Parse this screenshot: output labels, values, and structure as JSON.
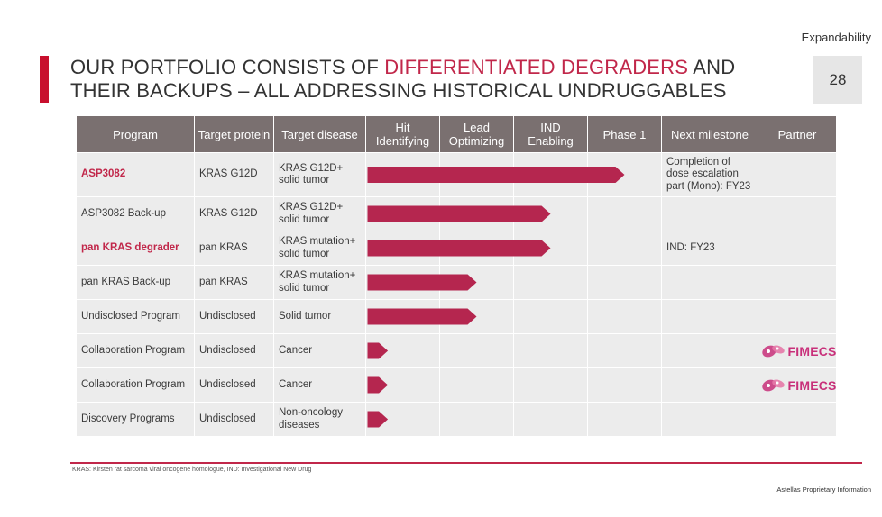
{
  "tag": "Expandability",
  "page_number": "28",
  "title": {
    "part1": "OUR PORTFOLIO CONSISTS OF ",
    "highlight": "DIFFERENTIATED DEGRADERS",
    "part2": " AND",
    "line2": "THEIR BACKUPS – ALL ADDRESSING HISTORICAL UNDRUGGABLES"
  },
  "headers": [
    "Program",
    "Target protein",
    "Target disease",
    "Hit Identifying",
    "Lead Optimizing",
    "IND Enabling",
    "Phase 1",
    "Next milestone",
    "Partner"
  ],
  "stages": [
    "Hit Identifying",
    "Lead Optimizing",
    "IND Enabling",
    "Phase 1"
  ],
  "rows": [
    {
      "program": "ASP3082",
      "highlight": true,
      "target": "KRAS G12D",
      "disease": "KRAS G12D+\nsolid tumor",
      "progress_stages": 3.5,
      "milestone": "Completion of\ndose escalation\npart (Mono): FY23",
      "partner": ""
    },
    {
      "program": "ASP3082 Back-up",
      "highlight": false,
      "target": "KRAS G12D",
      "disease": "KRAS G12D+\nsolid tumor",
      "progress_stages": 2.5,
      "milestone": "",
      "partner": ""
    },
    {
      "program": "pan KRAS degrader",
      "highlight": true,
      "target": "pan KRAS",
      "disease": "KRAS mutation+\nsolid tumor",
      "progress_stages": 2.5,
      "milestone": "IND: FY23",
      "partner": ""
    },
    {
      "program": "pan KRAS Back-up",
      "highlight": false,
      "target": "pan KRAS",
      "disease": "KRAS mutation+\nsolid tumor",
      "progress_stages": 1.5,
      "milestone": "",
      "partner": ""
    },
    {
      "program": "Undisclosed Program",
      "highlight": false,
      "target": "Undisclosed",
      "disease": "Solid tumor",
      "progress_stages": 1.5,
      "milestone": "",
      "partner": ""
    },
    {
      "program": "Collaboration Program",
      "highlight": false,
      "target": "Undisclosed",
      "disease": "Cancer",
      "progress_stages": 0.3,
      "milestone": "",
      "partner": "FIMECS"
    },
    {
      "program": "Collaboration Program",
      "highlight": false,
      "target": "Undisclosed",
      "disease": "Cancer",
      "progress_stages": 0.3,
      "milestone": "",
      "partner": "FIMECS"
    },
    {
      "program": "Discovery Programs",
      "highlight": false,
      "target": "Undisclosed",
      "disease": "Non-oncology\ndiseases",
      "progress_stages": 0.3,
      "milestone": "",
      "partner": ""
    }
  ],
  "colors": {
    "accent": "#c8102e",
    "bar": "#b5264f",
    "header": "#7a7070",
    "cell": "#ececec",
    "partner_logo": "#c8307a"
  },
  "footnote": "KRAS: Kirsten rat sarcoma viral oncogene homologue, IND: Investigational New Drug",
  "proprietary": "Astellas Proprietary Information"
}
